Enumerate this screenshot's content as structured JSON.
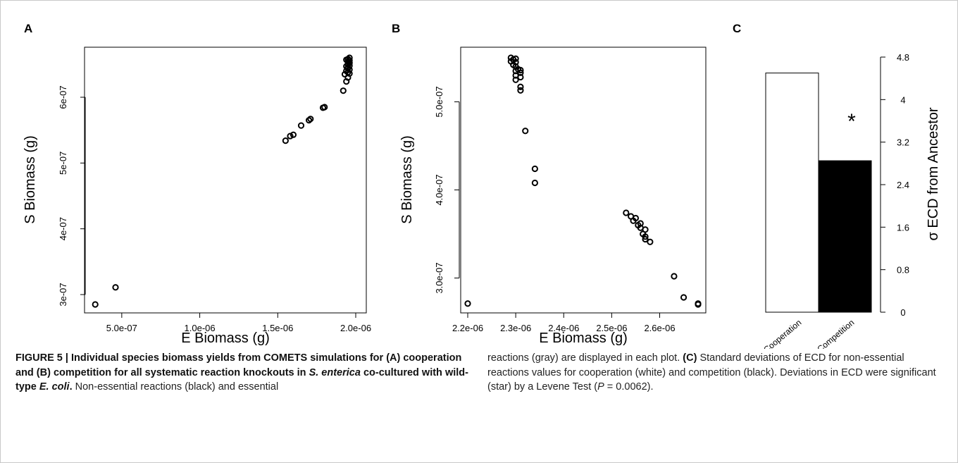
{
  "panels": [
    {
      "panel_label": "A",
      "xlabel": "E Biomass (g)",
      "ylabel": "S Biomass (g)",
      "chart_data": {
        "type": "scatter",
        "xlabel": "E Biomass (g)",
        "ylabel": "S Biomass (g)",
        "xlim": [
          3.2e-07,
          2e-06
        ],
        "ylim": [
          2.85e-07,
          6.6e-07
        ],
        "x_ticks": [
          5e-07,
          1e-06,
          1.5e-06,
          2e-06
        ],
        "x_tick_labels": [
          "5.0e-07",
          "1.0e-06",
          "1.5e-06",
          "2.0e-06"
        ],
        "y_ticks": [
          3e-07,
          4e-07,
          5e-07,
          6e-07
        ],
        "y_tick_labels": [
          "3e-07",
          "4e-07",
          "5e-07",
          "6e-07"
        ],
        "points": [
          [
            3.3e-07,
            2.85e-07
          ],
          [
            4.6e-07,
            3.11e-07
          ],
          [
            1.55e-06,
            5.34e-07
          ],
          [
            1.58e-06,
            5.41e-07
          ],
          [
            1.6e-06,
            5.43e-07
          ],
          [
            1.65e-06,
            5.57e-07
          ],
          [
            1.7e-06,
            5.65e-07
          ],
          [
            1.71e-06,
            5.67e-07
          ],
          [
            1.79e-06,
            5.84e-07
          ],
          [
            1.8e-06,
            5.85e-07
          ],
          [
            1.92e-06,
            6.1e-07
          ],
          [
            1.93e-06,
            6.35e-07
          ],
          [
            1.94e-06,
            6.24e-07
          ],
          [
            1.95e-06,
            6.3e-07
          ],
          [
            1.94e-06,
            6.4e-07
          ],
          [
            1.95e-06,
            6.45e-07
          ],
          [
            1.96e-06,
            6.48e-07
          ],
          [
            1.95e-06,
            6.5e-07
          ],
          [
            1.96e-06,
            6.52e-07
          ],
          [
            1.95e-06,
            6.54e-07
          ],
          [
            1.96e-06,
            6.56e-07
          ],
          [
            1.95e-06,
            6.58e-07
          ],
          [
            1.96e-06,
            6.6e-07
          ],
          [
            1.94e-06,
            6.57e-07
          ],
          [
            1.95e-06,
            6.38e-07
          ],
          [
            1.96e-06,
            6.42e-07
          ],
          [
            1.94e-06,
            6.47e-07
          ],
          [
            1.96e-06,
            6.36e-07
          ],
          [
            1.95e-06,
            6.44e-07
          ],
          [
            1.96e-06,
            6.53e-07
          ]
        ]
      }
    },
    {
      "panel_label": "B",
      "xlabel": "E Biomass (g)",
      "ylabel": "S Biomass (g)",
      "chart_data": {
        "type": "scatter",
        "xlabel": "E Biomass (g)",
        "ylabel": "S Biomass (g)",
        "xlim": [
          2.2e-06,
          2.68e-06
        ],
        "ylim": [
          2.7e-07,
          5.5e-07
        ],
        "x_ticks": [
          2.2e-06,
          2.3e-06,
          2.4e-06,
          2.5e-06,
          2.6e-06
        ],
        "x_tick_labels": [
          "2.2e-06",
          "2.3e-06",
          "2.4e-06",
          "2.5e-06",
          "2.6e-06"
        ],
        "y_ticks": [
          3e-07,
          4e-07,
          5e-07
        ],
        "y_tick_labels": [
          "3.0e-07",
          "4.0e-07",
          "5.0e-07"
        ],
        "points": [
          [
            2.2e-06,
            2.71e-07
          ],
          [
            2.29e-06,
            5.5e-07
          ],
          [
            2.295e-06,
            5.48e-07
          ],
          [
            2.29e-06,
            5.46e-07
          ],
          [
            2.3e-06,
            5.49e-07
          ],
          [
            2.3e-06,
            5.45e-07
          ],
          [
            2.295e-06,
            5.42e-07
          ],
          [
            2.3e-06,
            5.4e-07
          ],
          [
            2.305e-06,
            5.37e-07
          ],
          [
            2.3e-06,
            5.35e-07
          ],
          [
            2.31e-06,
            5.36e-07
          ],
          [
            2.31e-06,
            5.33e-07
          ],
          [
            2.3e-06,
            5.3e-07
          ],
          [
            2.31e-06,
            5.28e-07
          ],
          [
            2.3e-06,
            5.25e-07
          ],
          [
            2.31e-06,
            5.17e-07
          ],
          [
            2.31e-06,
            5.13e-07
          ],
          [
            2.32e-06,
            4.67e-07
          ],
          [
            2.34e-06,
            4.24e-07
          ],
          [
            2.34e-06,
            4.08e-07
          ],
          [
            2.53e-06,
            3.74e-07
          ],
          [
            2.54e-06,
            3.7e-07
          ],
          [
            2.55e-06,
            3.68e-07
          ],
          [
            2.545e-06,
            3.65e-07
          ],
          [
            2.56e-06,
            3.62e-07
          ],
          [
            2.555e-06,
            3.6e-07
          ],
          [
            2.56e-06,
            3.57e-07
          ],
          [
            2.57e-06,
            3.55e-07
          ],
          [
            2.565e-06,
            3.5e-07
          ],
          [
            2.57e-06,
            3.47e-07
          ],
          [
            2.57e-06,
            3.44e-07
          ],
          [
            2.58e-06,
            3.41e-07
          ],
          [
            2.63e-06,
            3.02e-07
          ],
          [
            2.65e-06,
            2.78e-07
          ],
          [
            2.68e-06,
            2.71e-07
          ],
          [
            2.68e-06,
            2.7e-07
          ]
        ]
      }
    },
    {
      "panel_label": "C",
      "ylabel": "σ ECD from Ancestor",
      "significance_mark": "*",
      "chart_data": {
        "type": "bar",
        "categories": [
          "Cooperation",
          "Competition"
        ],
        "values": [
          4.5,
          2.85
        ],
        "bar_colors": [
          "#ffffff",
          "#000000"
        ],
        "ylabel": "σ ECD from Ancestor",
        "ylim": [
          0,
          4.8
        ],
        "y_ticks": [
          0,
          0.8,
          1.6,
          2.4,
          3.2,
          4,
          4.8
        ],
        "y_tick_labels": [
          "0",
          "0.8",
          "1.6",
          "2.4",
          "3.2",
          "4",
          "4.8"
        ],
        "y_axis_side": "right"
      }
    }
  ],
  "caption": {
    "left": {
      "figure_label": "FIGURE 5 |",
      "bold_text": "Individual species biomass yields from COMETS simulations for (A) cooperation and (B) competition for all systematic reaction knockouts in",
      "bold_italic_species": "S. enterica",
      "bold_text_2": "co-cultured with wild-type",
      "bold_italic_species_2": "E. coli",
      "bold_end": ".",
      "plain_text": "Non-essential reactions (black) and essential"
    },
    "right": {
      "text_1": "reactions (gray) are displayed in each plot.",
      "bold_c": "(C)",
      "text_2": "Standard deviations of ECD for non-essential reactions values for cooperation (white) and competition (black). Deviations in ECD were significant (star) by a Levene Test (",
      "p_symbol": "P",
      "text_3": "= 0.0062)."
    }
  }
}
